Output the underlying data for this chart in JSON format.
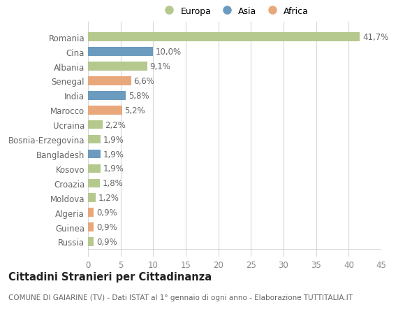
{
  "categories": [
    "Romania",
    "Cina",
    "Albania",
    "Senegal",
    "India",
    "Marocco",
    "Ucraina",
    "Bosnia-Erzegovina",
    "Bangladesh",
    "Kosovo",
    "Croazia",
    "Moldova",
    "Algeria",
    "Guinea",
    "Russia"
  ],
  "values": [
    41.7,
    10.0,
    9.1,
    6.6,
    5.8,
    5.2,
    2.2,
    1.9,
    1.9,
    1.9,
    1.8,
    1.2,
    0.9,
    0.9,
    0.9
  ],
  "labels": [
    "41,7%",
    "10,0%",
    "9,1%",
    "6,6%",
    "5,8%",
    "5,2%",
    "2,2%",
    "1,9%",
    "1,9%",
    "1,9%",
    "1,8%",
    "1,2%",
    "0,9%",
    "0,9%",
    "0,9%"
  ],
  "continents": [
    "Europa",
    "Asia",
    "Europa",
    "Africa",
    "Asia",
    "Africa",
    "Europa",
    "Europa",
    "Asia",
    "Europa",
    "Europa",
    "Europa",
    "Africa",
    "Africa",
    "Europa"
  ],
  "colors": {
    "Europa": "#b5c98e",
    "Asia": "#6b9bbf",
    "Africa": "#e8a87c"
  },
  "title": "Cittadini Stranieri per Cittadinanza",
  "subtitle": "COMUNE DI GAIARINE (TV) - Dati ISTAT al 1° gennaio di ogni anno - Elaborazione TUTTITALIA.IT",
  "xlim": [
    0,
    45
  ],
  "xticks": [
    0,
    5,
    10,
    15,
    20,
    25,
    30,
    35,
    40,
    45
  ],
  "background_color": "#ffffff",
  "grid_color": "#d8d8d8",
  "bar_height": 0.6,
  "label_fontsize": 8.5,
  "tick_fontsize": 8.5,
  "title_fontsize": 10.5,
  "subtitle_fontsize": 7.5
}
